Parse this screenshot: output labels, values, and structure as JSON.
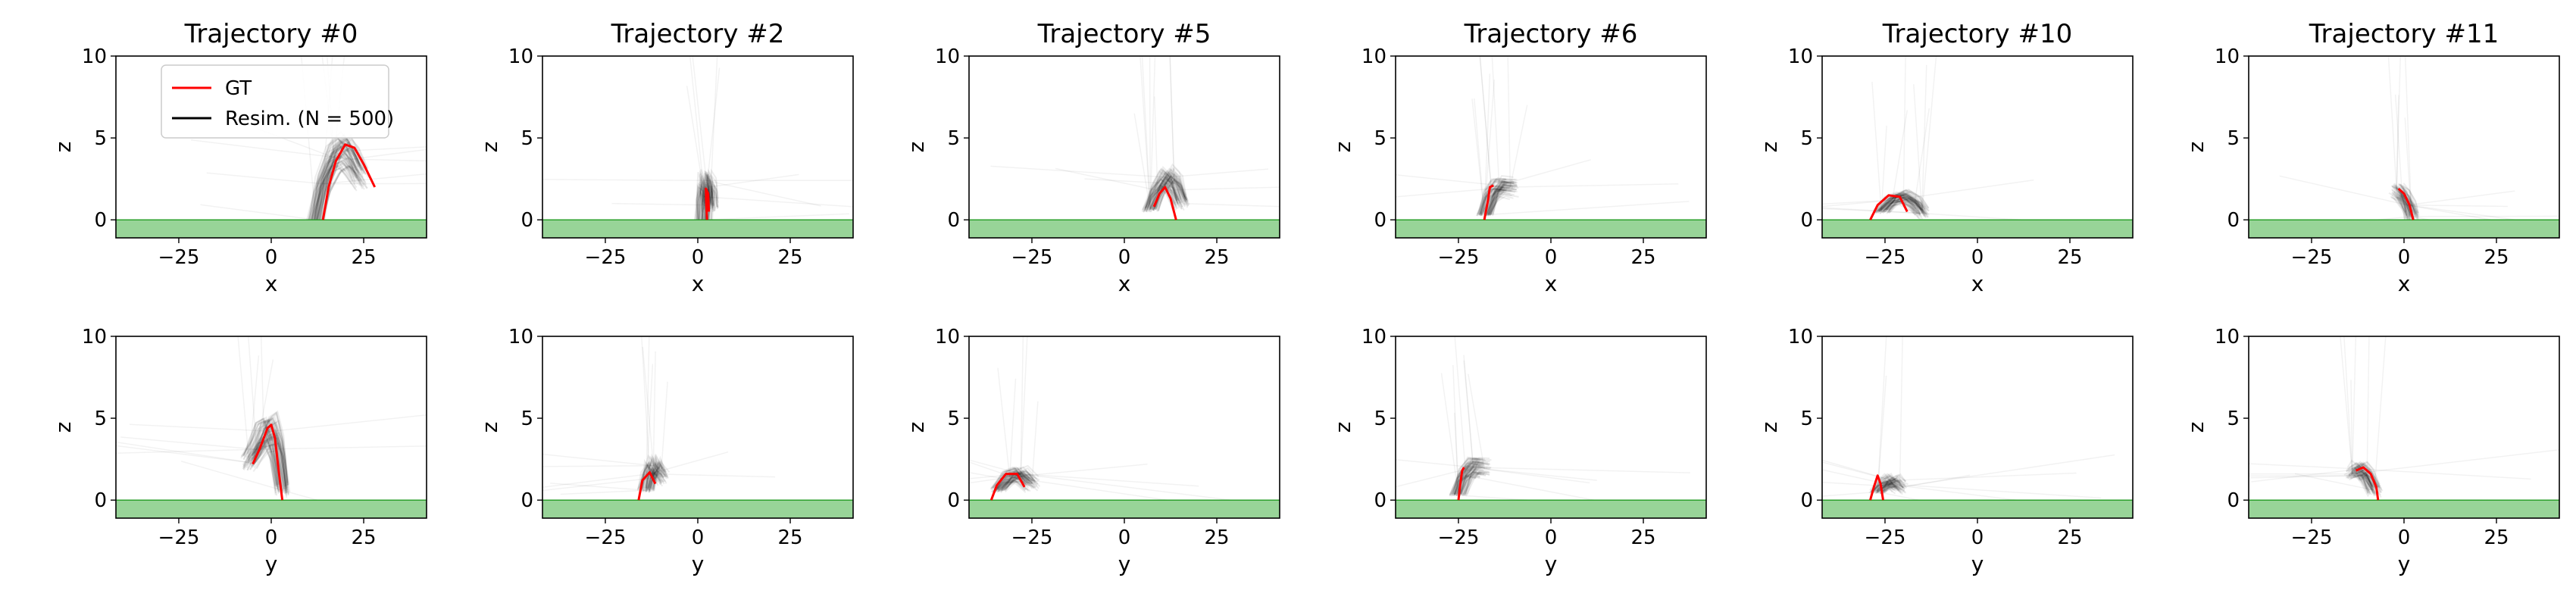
{
  "chart_data": {
    "type": "line",
    "colors": {
      "gt": "#ff0000",
      "resim": "#000000",
      "ground": "#98d498",
      "ground_edge": "#2ca02c"
    },
    "legend": {
      "placement": "upper-left",
      "panel": 0,
      "entries": [
        "GT",
        "Resim. (N = 500)"
      ]
    },
    "axes": {
      "x_range": [
        -42,
        42
      ],
      "z_range": [
        -1.1,
        10
      ],
      "x_ticks": [
        -25,
        0,
        25
      ],
      "z_ticks": [
        0,
        5,
        10
      ],
      "ground_z": [
        -1.1,
        0
      ]
    },
    "row_xlabels": [
      "x",
      "y"
    ],
    "ylabel": "z",
    "panels": [
      {
        "title": "Trajectory #0",
        "row": 0,
        "col": 0,
        "xlabel": "x",
        "ylabel": "z",
        "gt": [
          [
            14,
            0
          ],
          [
            15.5,
            2.0
          ],
          [
            17.5,
            3.6
          ],
          [
            20,
            4.6
          ],
          [
            22.5,
            4.4
          ],
          [
            25,
            3.4
          ],
          [
            28,
            2.0
          ]
        ],
        "resim_center": [
          [
            12,
            0
          ],
          [
            14,
            2.2
          ],
          [
            17,
            3.8
          ],
          [
            19.5,
            4.2
          ],
          [
            21.5,
            3.7
          ],
          [
            24,
            2.6
          ]
        ]
      },
      {
        "title": "Trajectory #2",
        "row": 0,
        "col": 1,
        "xlabel": "x",
        "ylabel": "z",
        "gt": [
          [
            2.5,
            0
          ],
          [
            2.3,
            1.0
          ],
          [
            2.2,
            1.9
          ],
          [
            2.8,
            1.6
          ],
          [
            3.0,
            0.5
          ]
        ],
        "resim_center": [
          [
            1.5,
            0
          ],
          [
            1.8,
            1.4
          ],
          [
            2.3,
            2.4
          ],
          [
            2.9,
            2.0
          ],
          [
            3.3,
            0.9
          ]
        ]
      },
      {
        "title": "Trajectory #5",
        "row": 0,
        "col": 2,
        "xlabel": "x",
        "ylabel": "z",
        "gt": [
          [
            8,
            0.8
          ],
          [
            9.5,
            1.6
          ],
          [
            11,
            2.0
          ],
          [
            12.5,
            1.3
          ],
          [
            14,
            0
          ]
        ],
        "resim_center": [
          [
            7,
            0.6
          ],
          [
            9,
            1.8
          ],
          [
            11.5,
            2.6
          ],
          [
            13.5,
            2.2
          ],
          [
            15.5,
            1.0
          ]
        ]
      },
      {
        "title": "Trajectory #6",
        "row": 0,
        "col": 3,
        "xlabel": "x",
        "ylabel": "z",
        "gt": [
          [
            -18,
            0
          ],
          [
            -17,
            1.2
          ],
          [
            -16.5,
            2.0
          ],
          [
            -15.5,
            2.1
          ]
        ],
        "resim_center": [
          [
            -18,
            0.3
          ],
          [
            -16,
            1.6
          ],
          [
            -14,
            2.1
          ],
          [
            -11,
            2.0
          ]
        ]
      },
      {
        "title": "Trajectory #10",
        "row": 0,
        "col": 4,
        "xlabel": "x",
        "ylabel": "z",
        "gt": [
          [
            -29,
            0
          ],
          [
            -27,
            0.9
          ],
          [
            -24,
            1.5
          ],
          [
            -21,
            1.4
          ],
          [
            -19,
            0.5
          ]
        ],
        "resim_center": [
          [
            -26,
            0.5
          ],
          [
            -23,
            1.2
          ],
          [
            -20,
            1.4
          ],
          [
            -17,
            1.0
          ],
          [
            -15,
            0.4
          ]
        ]
      },
      {
        "title": "Trajectory #11",
        "row": 0,
        "col": 5,
        "xlabel": "x",
        "ylabel": "z",
        "gt": [
          [
            -1.5,
            1.9
          ],
          [
            0,
            1.6
          ],
          [
            1.5,
            0.9
          ],
          [
            2.5,
            0
          ]
        ],
        "resim_center": [
          [
            -2,
            1.8
          ],
          [
            -0.5,
            1.5
          ],
          [
            1,
            0.9
          ],
          [
            2,
            0.2
          ]
        ]
      },
      {
        "title": "",
        "row": 1,
        "col": 0,
        "xlabel": "y",
        "ylabel": "z",
        "gt": [
          [
            -5,
            2.2
          ],
          [
            -3,
            3.2
          ],
          [
            -1,
            4.4
          ],
          [
            0,
            4.6
          ],
          [
            1,
            3.8
          ],
          [
            2,
            1.8
          ],
          [
            3,
            0
          ]
        ],
        "resim_center": [
          [
            -6,
            2.3
          ],
          [
            -4,
            3.1
          ],
          [
            -2,
            4.0
          ],
          [
            0,
            4.2
          ],
          [
            1.5,
            3.0
          ],
          [
            3,
            0.6
          ]
        ]
      },
      {
        "title": "",
        "row": 1,
        "col": 1,
        "xlabel": "y",
        "ylabel": "z",
        "gt": [
          [
            -16,
            0
          ],
          [
            -15,
            1.2
          ],
          [
            -13,
            1.7
          ],
          [
            -11.5,
            1.0
          ]
        ],
        "resim_center": [
          [
            -14,
            0.6
          ],
          [
            -13,
            1.6
          ],
          [
            -12,
            2.1
          ],
          [
            -10,
            1.4
          ]
        ]
      },
      {
        "title": "",
        "row": 1,
        "col": 2,
        "xlabel": "y",
        "ylabel": "z",
        "gt": [
          [
            -36,
            0
          ],
          [
            -34.5,
            0.9
          ],
          [
            -32,
            1.6
          ],
          [
            -29,
            1.6
          ],
          [
            -27,
            0.8
          ]
        ],
        "resim_center": [
          [
            -34,
            0.6
          ],
          [
            -31,
            1.4
          ],
          [
            -28,
            1.6
          ],
          [
            -25,
            1.0
          ]
        ]
      },
      {
        "title": "",
        "row": 1,
        "col": 3,
        "xlabel": "y",
        "ylabel": "z",
        "gt": [
          [
            -25,
            0
          ],
          [
            -24.5,
            1.0
          ],
          [
            -24,
            1.8
          ],
          [
            -23.5,
            2.0
          ]
        ],
        "resim_center": [
          [
            -25,
            0.3
          ],
          [
            -23,
            1.5
          ],
          [
            -21,
            2.0
          ],
          [
            -18,
            1.9
          ]
        ]
      },
      {
        "title": "",
        "row": 1,
        "col": 4,
        "xlabel": "y",
        "ylabel": "z",
        "gt": [
          [
            -29,
            0
          ],
          [
            -28,
            0.8
          ],
          [
            -27,
            1.5
          ],
          [
            -26.2,
            1.0
          ],
          [
            -25.5,
            0
          ]
        ],
        "resim_center": [
          [
            -27,
            0.5
          ],
          [
            -25,
            1.0
          ],
          [
            -23,
            1.2
          ],
          [
            -21,
            0.8
          ]
        ]
      },
      {
        "title": "",
        "row": 1,
        "col": 5,
        "xlabel": "y",
        "ylabel": "z",
        "gt": [
          [
            -13,
            1.8
          ],
          [
            -11,
            2.0
          ],
          [
            -9,
            1.6
          ],
          [
            -7.5,
            0.8
          ],
          [
            -7,
            0
          ]
        ],
        "resim_center": [
          [
            -14,
            1.6
          ],
          [
            -12,
            1.9
          ],
          [
            -10,
            1.5
          ],
          [
            -8,
            0.6
          ]
        ]
      }
    ]
  }
}
